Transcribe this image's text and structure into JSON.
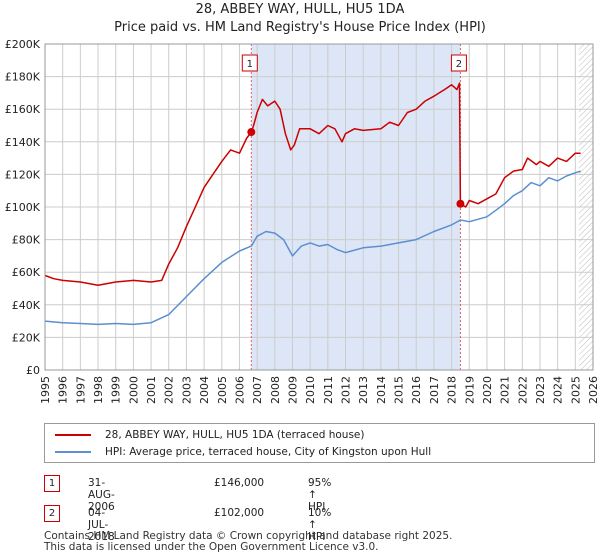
{
  "title_line1": "28, ABBEY WAY, HULL, HU5 1DA",
  "title_line2": "Price paid vs. HM Land Registry's House Price Index (HPI)",
  "colors": {
    "property": "#cc0000",
    "hpi": "#5b8fd0",
    "shade": "#dde6f7",
    "grid": "#cccccc",
    "vline": "#e06060"
  },
  "legend": {
    "property_label": "28, ABBEY WAY, HULL, HU5 1DA (terraced house)",
    "hpi_label": "HPI: Average price, terraced house, City of Kingston upon Hull"
  },
  "transactions": [
    {
      "num": "1",
      "date": "31-AUG-2006",
      "price": "£146,000",
      "hpi": "95% ↑ HPI"
    },
    {
      "num": "2",
      "date": "04-JUL-2018",
      "price": "£102,000",
      "hpi": "10% ↑ HPI"
    }
  ],
  "footer_line1": "Contains HM Land Registry data © Crown copyright and database right 2025.",
  "footer_line2": "This data is licensed under the Open Government Licence v3.0.",
  "chart_data": {
    "type": "line",
    "xlim": [
      1995,
      2026
    ],
    "ylim": [
      0,
      200000
    ],
    "y_ticks": [
      0,
      20000,
      40000,
      60000,
      80000,
      100000,
      120000,
      140000,
      160000,
      180000,
      200000
    ],
    "y_tick_labels": [
      "£0",
      "£20K",
      "£40K",
      "£60K",
      "£80K",
      "£100K",
      "£120K",
      "£140K",
      "£160K",
      "£180K",
      "£200K"
    ],
    "x_ticks": [
      1995,
      1996,
      1997,
      1998,
      1999,
      2000,
      2001,
      2002,
      2003,
      2004,
      2005,
      2006,
      2007,
      2008,
      2009,
      2010,
      2011,
      2012,
      2013,
      2014,
      2015,
      2016,
      2017,
      2018,
      2019,
      2020,
      2021,
      2022,
      2023,
      2024,
      2025,
      2026
    ],
    "x_tick_labels": [
      "1995",
      "1996",
      "1997",
      "1998",
      "1999",
      "2000",
      "2001",
      "2002",
      "2003",
      "2004",
      "2005",
      "2006",
      "2007",
      "2008",
      "2009",
      "2010",
      "2011",
      "2012",
      "2013",
      "2014",
      "2015",
      "2016",
      "2017",
      "2018",
      "2019",
      "2020",
      "2021",
      "2022",
      "2023",
      "2024",
      "2025",
      "2026"
    ],
    "shaded_range": [
      2006.67,
      2018.5
    ],
    "future_hatch_from": 2025.2,
    "sales": [
      {
        "label": "1",
        "x": 2006.67,
        "y": 146000
      },
      {
        "label": "2",
        "x": 2018.5,
        "y": 102000
      }
    ],
    "series": [
      {
        "name": "28, ABBEY WAY, HULL, HU5 1DA (terraced house)",
        "x": [
          1995,
          1995.5,
          1996,
          1997,
          1998,
          1999,
          2000,
          2001,
          2001.6,
          2002,
          2002.5,
          2003,
          2003.5,
          2004,
          2004.5,
          2005,
          2005.5,
          2006,
          2006.4,
          2006.67,
          2006.8,
          2007,
          2007.3,
          2007.6,
          2008,
          2008.3,
          2008.6,
          2008.9,
          2009.1,
          2009.4,
          2010,
          2010.5,
          2011,
          2011.4,
          2011.8,
          2012,
          2012.5,
          2013,
          2014,
          2014.5,
          2015,
          2015.5,
          2016,
          2016.5,
          2017,
          2017.3,
          2017.6,
          2018,
          2018.3,
          2018.45,
          2018.5,
          2018.8,
          2019,
          2019.5,
          2020,
          2020.5,
          2021,
          2021.5,
          2022,
          2022.3,
          2022.8,
          2023,
          2023.5,
          2024,
          2024.5,
          2025,
          2025.3
        ],
        "y": [
          58000,
          56000,
          55000,
          54000,
          52000,
          54000,
          55000,
          54000,
          55000,
          65000,
          75000,
          88000,
          100000,
          112000,
          120000,
          128000,
          135000,
          133000,
          142000,
          146000,
          150000,
          158000,
          166000,
          162000,
          165000,
          160000,
          145000,
          135000,
          138000,
          148000,
          148000,
          145000,
          150000,
          148000,
          140000,
          145000,
          148000,
          147000,
          148000,
          152000,
          150000,
          158000,
          160000,
          165000,
          168000,
          170000,
          172000,
          175000,
          172000,
          176000,
          102000,
          100000,
          104000,
          102000,
          105000,
          108000,
          118000,
          122000,
          123000,
          130000,
          126000,
          128000,
          125000,
          130000,
          128000,
          133000,
          133000
        ]
      },
      {
        "name": "HPI: Average price, terraced house, City of Kingston upon Hull",
        "x": [
          1995,
          1996,
          1997,
          1998,
          1999,
          2000,
          2001,
          2002,
          2003,
          2004,
          2005,
          2006,
          2006.67,
          2007,
          2007.5,
          2008,
          2008.5,
          2009,
          2009.5,
          2010,
          2010.5,
          2011,
          2011.5,
          2012,
          2013,
          2014,
          2015,
          2016,
          2017,
          2018,
          2018.5,
          2019,
          2020,
          2020.5,
          2021,
          2021.5,
          2022,
          2022.5,
          2023,
          2023.5,
          2024,
          2024.5,
          2025,
          2025.3
        ],
        "y": [
          30000,
          29000,
          28500,
          28000,
          28500,
          28000,
          29000,
          34000,
          45000,
          56000,
          66000,
          73000,
          76000,
          82000,
          85000,
          84000,
          80000,
          70000,
          76000,
          78000,
          76000,
          77000,
          74000,
          72000,
          75000,
          76000,
          78000,
          80000,
          85000,
          89000,
          92000,
          91000,
          94000,
          98000,
          102000,
          107000,
          110000,
          115000,
          113000,
          118000,
          116000,
          119000,
          121000,
          122000
        ]
      }
    ]
  }
}
